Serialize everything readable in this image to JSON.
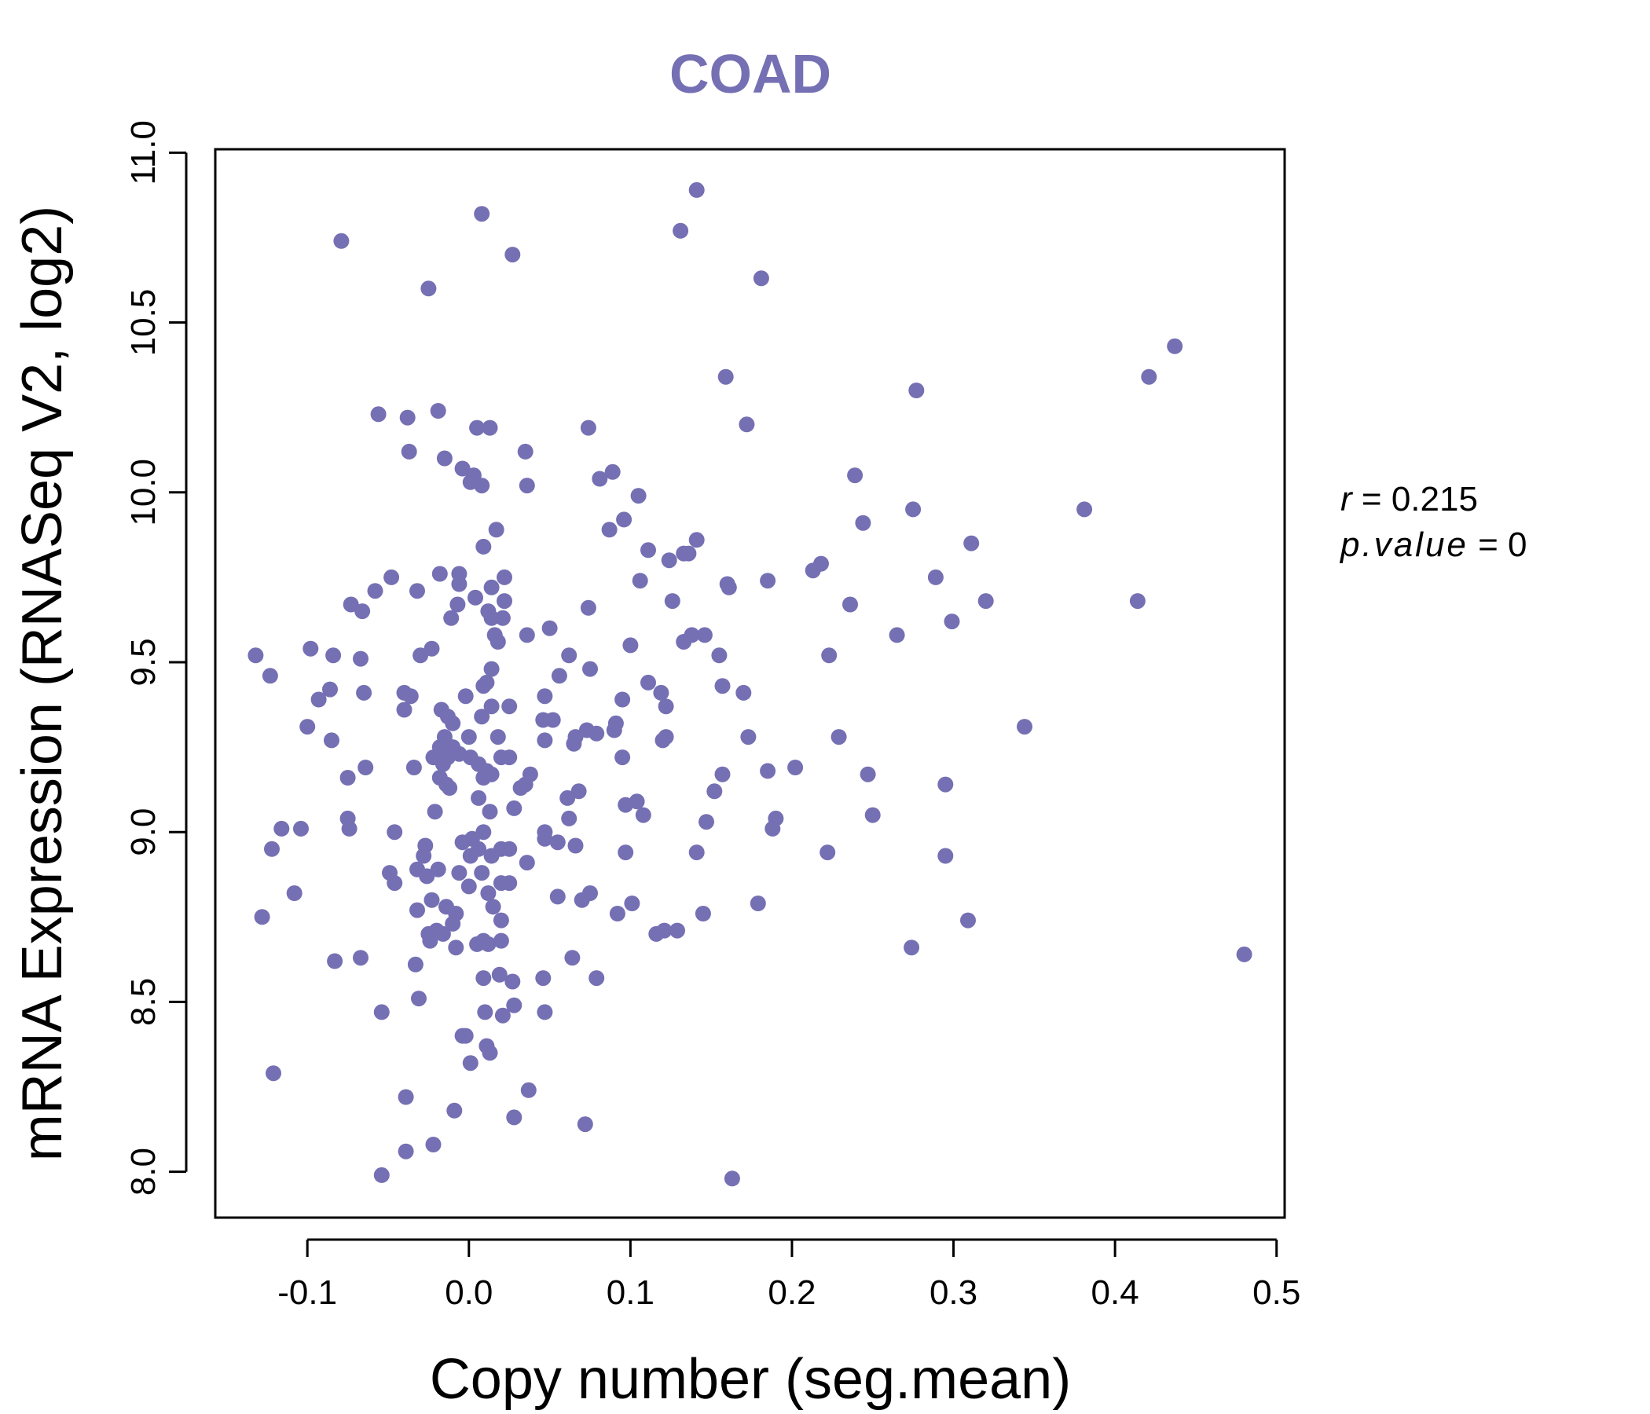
{
  "chart_data": {
    "type": "scatter",
    "title": "COAD",
    "xlabel": "Copy number (seg.mean)",
    "ylabel": "mRNA Expression (RNASeq V2, log2)",
    "xlim": [
      -0.157,
      0.505
    ],
    "ylim": [
      7.865,
      11.01
    ],
    "xticks": [
      -0.1,
      0.0,
      0.1,
      0.2,
      0.3,
      0.4,
      0.5
    ],
    "xtick_labels": [
      "-0.1",
      "0.0",
      "0.1",
      "0.2",
      "0.3",
      "0.4",
      "0.5"
    ],
    "yticks": [
      8.0,
      8.5,
      9.0,
      9.5,
      10.0,
      10.5,
      11.0
    ],
    "ytick_labels": [
      "8.0",
      "8.5",
      "9.0",
      "9.5",
      "10.0",
      "10.5",
      "11.0"
    ],
    "grid": false,
    "point_color": "#7570b3",
    "stats": {
      "r_label": "r",
      "r_value": "0.215",
      "p_label": "p.value",
      "p_value": "0"
    },
    "points": [
      [
        -0.079,
        10.74
      ],
      [
        0.008,
        10.82
      ],
      [
        0.027,
        10.7
      ],
      [
        -0.025,
        10.6
      ],
      [
        0.141,
        10.89
      ],
      [
        0.131,
        10.77
      ],
      [
        0.181,
        10.63
      ],
      [
        0.437,
        10.43
      ],
      [
        0.421,
        10.34
      ],
      [
        0.159,
        10.34
      ],
      [
        0.277,
        10.3
      ],
      [
        0.172,
        10.2
      ],
      [
        -0.056,
        10.23
      ],
      [
        -0.038,
        10.22
      ],
      [
        -0.019,
        10.24
      ],
      [
        0.005,
        10.19
      ],
      [
        0.013,
        10.19
      ],
      [
        0.074,
        10.19
      ],
      [
        0.035,
        10.12
      ],
      [
        -0.037,
        10.12
      ],
      [
        -0.015,
        10.1
      ],
      [
        -0.004,
        10.07
      ],
      [
        0.003,
        10.05
      ],
      [
        0.001,
        10.03
      ],
      [
        0.008,
        10.02
      ],
      [
        0.036,
        10.02
      ],
      [
        0.089,
        10.06
      ],
      [
        0.081,
        10.04
      ],
      [
        0.105,
        9.99
      ],
      [
        0.239,
        10.05
      ],
      [
        0.275,
        9.95
      ],
      [
        0.381,
        9.95
      ],
      [
        0.087,
        9.89
      ],
      [
        0.096,
        9.92
      ],
      [
        0.244,
        9.91
      ],
      [
        0.017,
        9.89
      ],
      [
        0.009,
        9.84
      ],
      [
        0.141,
        9.86
      ],
      [
        0.111,
        9.83
      ],
      [
        0.311,
        9.85
      ],
      [
        0.133,
        9.82
      ],
      [
        0.124,
        9.8
      ],
      [
        0.136,
        9.82
      ],
      [
        0.218,
        9.79
      ],
      [
        0.213,
        9.77
      ],
      [
        0.289,
        9.75
      ],
      [
        0.185,
        9.74
      ],
      [
        0.16,
        9.73
      ],
      [
        0.161,
        9.72
      ],
      [
        -0.048,
        9.75
      ],
      [
        -0.058,
        9.71
      ],
      [
        -0.032,
        9.71
      ],
      [
        -0.018,
        9.76
      ],
      [
        -0.006,
        9.76
      ],
      [
        -0.006,
        9.73
      ],
      [
        0.014,
        9.72
      ],
      [
        0.022,
        9.75
      ],
      [
        0.106,
        9.74
      ],
      [
        -0.073,
        9.67
      ],
      [
        -0.066,
        9.65
      ],
      [
        -0.007,
        9.67
      ],
      [
        0.004,
        9.69
      ],
      [
        0.012,
        9.65
      ],
      [
        0.014,
        9.63
      ],
      [
        0.021,
        9.63
      ],
      [
        0.022,
        9.68
      ],
      [
        0.126,
        9.68
      ],
      [
        0.236,
        9.67
      ],
      [
        0.414,
        9.68
      ],
      [
        0.32,
        9.68
      ],
      [
        0.074,
        9.66
      ],
      [
        -0.011,
        9.63
      ],
      [
        0.299,
        9.62
      ],
      [
        0.265,
        9.58
      ],
      [
        0.138,
        9.58
      ],
      [
        0.146,
        9.58
      ],
      [
        0.133,
        9.56
      ],
      [
        0.1,
        9.55
      ],
      [
        0.016,
        9.58
      ],
      [
        0.018,
        9.56
      ],
      [
        0.036,
        9.58
      ],
      [
        0.05,
        9.6
      ],
      [
        -0.132,
        9.52
      ],
      [
        -0.098,
        9.54
      ],
      [
        -0.084,
        9.52
      ],
      [
        -0.067,
        9.51
      ],
      [
        -0.023,
        9.54
      ],
      [
        -0.03,
        9.52
      ],
      [
        0.062,
        9.52
      ],
      [
        0.155,
        9.52
      ],
      [
        0.223,
        9.52
      ],
      [
        -0.123,
        9.46
      ],
      [
        -0.093,
        9.39
      ],
      [
        -0.086,
        9.42
      ],
      [
        -0.065,
        9.41
      ],
      [
        -0.04,
        9.41
      ],
      [
        -0.036,
        9.4
      ],
      [
        0.014,
        9.48
      ],
      [
        0.011,
        9.44
      ],
      [
        0.009,
        9.43
      ],
      [
        0.056,
        9.46
      ],
      [
        0.075,
        9.48
      ],
      [
        0.111,
        9.44
      ],
      [
        0.119,
        9.41
      ],
      [
        0.17,
        9.41
      ],
      [
        0.157,
        9.43
      ],
      [
        -0.1,
        9.31
      ],
      [
        -0.085,
        9.27
      ],
      [
        -0.04,
        9.36
      ],
      [
        -0.017,
        9.36
      ],
      [
        -0.013,
        9.34
      ],
      [
        -0.01,
        9.32
      ],
      [
        -0.002,
        9.4
      ],
      [
        0.008,
        9.34
      ],
      [
        0.014,
        9.37
      ],
      [
        0.025,
        9.37
      ],
      [
        0.046,
        9.33
      ],
      [
        0.052,
        9.33
      ],
      [
        0.047,
        9.4
      ],
      [
        0.095,
        9.39
      ],
      [
        0.122,
        9.37
      ],
      [
        0.091,
        9.32
      ],
      [
        0.09,
        9.3
      ],
      [
        0.073,
        9.3
      ],
      [
        0.079,
        9.29
      ],
      [
        0.066,
        9.28
      ],
      [
        0.065,
        9.26
      ],
      [
        0.047,
        9.27
      ],
      [
        0.018,
        9.28
      ],
      [
        0.0,
        9.28
      ],
      [
        0.12,
        9.27
      ],
      [
        0.122,
        9.28
      ],
      [
        0.173,
        9.28
      ],
      [
        0.229,
        9.28
      ],
      [
        0.344,
        9.31
      ],
      [
        -0.075,
        9.16
      ],
      [
        -0.064,
        9.19
      ],
      [
        -0.034,
        9.19
      ],
      [
        -0.022,
        9.22
      ],
      [
        -0.018,
        9.25
      ],
      [
        -0.017,
        9.22
      ],
      [
        -0.015,
        9.28
      ],
      [
        -0.016,
        9.2
      ],
      [
        -0.013,
        9.22
      ],
      [
        -0.01,
        9.25
      ],
      [
        -0.006,
        9.23
      ],
      [
        0.001,
        9.22
      ],
      [
        0.006,
        9.2
      ],
      [
        0.009,
        9.16
      ],
      [
        0.011,
        9.18
      ],
      [
        0.014,
        9.17
      ],
      [
        0.02,
        9.22
      ],
      [
        0.025,
        9.22
      ],
      [
        -0.018,
        9.16
      ],
      [
        -0.014,
        9.14
      ],
      [
        -0.012,
        9.13
      ],
      [
        0.032,
        9.13
      ],
      [
        0.035,
        9.14
      ],
      [
        0.038,
        9.17
      ],
      [
        0.068,
        9.12
      ],
      [
        0.061,
        9.1
      ],
      [
        0.095,
        9.22
      ],
      [
        0.157,
        9.17
      ],
      [
        0.185,
        9.18
      ],
      [
        0.202,
        9.19
      ],
      [
        0.247,
        9.17
      ],
      [
        0.152,
        9.12
      ],
      [
        0.104,
        9.09
      ],
      [
        0.097,
        9.08
      ],
      [
        0.108,
        9.05
      ],
      [
        0.006,
        9.1
      ],
      [
        0.013,
        9.06
      ],
      [
        0.028,
        9.07
      ],
      [
        -0.021,
        9.06
      ],
      [
        -0.075,
        9.04
      ],
      [
        -0.074,
        9.01
      ],
      [
        -0.116,
        9.01
      ],
      [
        -0.104,
        9.01
      ],
      [
        -0.122,
        8.95
      ],
      [
        -0.046,
        9.0
      ],
      [
        -0.027,
        8.96
      ],
      [
        -0.028,
        8.93
      ],
      [
        -0.004,
        8.97
      ],
      [
        0.002,
        8.98
      ],
      [
        0.009,
        9.0
      ],
      [
        0.006,
        8.95
      ],
      [
        0.014,
        8.93
      ],
      [
        0.02,
        8.95
      ],
      [
        0.025,
        8.95
      ],
      [
        0.001,
        8.93
      ],
      [
        0.047,
        9.0
      ],
      [
        0.047,
        8.98
      ],
      [
        0.055,
        8.97
      ],
      [
        0.062,
        9.04
      ],
      [
        0.066,
        8.96
      ],
      [
        0.097,
        8.94
      ],
      [
        0.141,
        8.94
      ],
      [
        0.147,
        9.03
      ],
      [
        0.19,
        9.04
      ],
      [
        0.188,
        9.01
      ],
      [
        0.222,
        8.94
      ],
      [
        0.25,
        9.05
      ],
      [
        0.295,
        8.93
      ],
      [
        0.295,
        9.14
      ],
      [
        -0.108,
        8.82
      ],
      [
        -0.128,
        8.75
      ],
      [
        -0.049,
        8.88
      ],
      [
        -0.046,
        8.85
      ],
      [
        -0.032,
        8.89
      ],
      [
        -0.026,
        8.87
      ],
      [
        -0.019,
        8.89
      ],
      [
        -0.006,
        8.88
      ],
      [
        0.008,
        8.88
      ],
      [
        0.012,
        8.82
      ],
      [
        0.015,
        8.78
      ],
      [
        0.02,
        8.85
      ],
      [
        0.025,
        8.85
      ],
      [
        0.036,
        8.91
      ],
      [
        -0.032,
        8.77
      ],
      [
        -0.023,
        8.8
      ],
      [
        -0.014,
        8.78
      ],
      [
        -0.008,
        8.76
      ],
      [
        -0.01,
        8.73
      ],
      [
        0.0,
        8.84
      ],
      [
        0.02,
        8.74
      ],
      [
        0.055,
        8.81
      ],
      [
        0.07,
        8.8
      ],
      [
        0.075,
        8.82
      ],
      [
        0.092,
        8.76
      ],
      [
        0.101,
        8.79
      ],
      [
        0.179,
        8.79
      ],
      [
        0.145,
        8.76
      ],
      [
        -0.025,
        8.7
      ],
      [
        -0.024,
        8.68
      ],
      [
        -0.02,
        8.71
      ],
      [
        -0.016,
        8.7
      ],
      [
        -0.008,
        8.66
      ],
      [
        0.005,
        8.67
      ],
      [
        0.009,
        8.68
      ],
      [
        0.012,
        8.67
      ],
      [
        0.02,
        8.68
      ],
      [
        0.116,
        8.7
      ],
      [
        0.121,
        8.71
      ],
      [
        0.129,
        8.71
      ],
      [
        0.274,
        8.66
      ],
      [
        0.309,
        8.74
      ],
      [
        0.48,
        8.64
      ],
      [
        -0.083,
        8.62
      ],
      [
        -0.067,
        8.63
      ],
      [
        -0.033,
        8.61
      ],
      [
        0.009,
        8.57
      ],
      [
        0.019,
        8.58
      ],
      [
        0.027,
        8.56
      ],
      [
        0.046,
        8.57
      ],
      [
        0.064,
        8.63
      ],
      [
        0.079,
        8.57
      ],
      [
        -0.054,
        8.47
      ],
      [
        -0.031,
        8.51
      ],
      [
        0.01,
        8.47
      ],
      [
        0.021,
        8.46
      ],
      [
        0.028,
        8.49
      ],
      [
        0.047,
        8.47
      ],
      [
        -0.004,
        8.4
      ],
      [
        -0.002,
        8.4
      ],
      [
        0.011,
        8.37
      ],
      [
        0.013,
        8.35
      ],
      [
        0.001,
        8.32
      ],
      [
        -0.121,
        8.29
      ],
      [
        -0.039,
        8.22
      ],
      [
        0.037,
        8.24
      ],
      [
        -0.009,
        8.18
      ],
      [
        0.028,
        8.16
      ],
      [
        0.072,
        8.14
      ],
      [
        -0.039,
        8.06
      ],
      [
        -0.022,
        8.08
      ],
      [
        -0.054,
        7.99
      ],
      [
        0.163,
        7.98
      ]
    ]
  }
}
